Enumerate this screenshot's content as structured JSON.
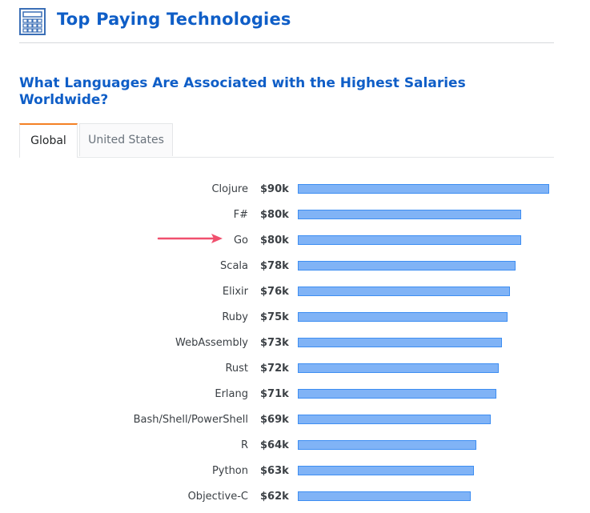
{
  "header": {
    "title": "Top Paying Technologies",
    "icon": "calculator-icon"
  },
  "subtitle": "What Languages Are Associated with the Highest Salaries Worldwide?",
  "tabs": [
    {
      "label": "Global",
      "active": true
    },
    {
      "label": "United States",
      "active": false
    }
  ],
  "colors": {
    "title": "#0f5ec7",
    "bar_fill": "#80b3f6",
    "bar_border": "#3e8ef2",
    "active_tab_accent": "#f48024",
    "arrow": "#f0506e"
  },
  "annotation": {
    "type": "arrow",
    "points_to": "Go",
    "icon": "arrow-right-icon"
  },
  "chart_data": {
    "type": "bar",
    "orientation": "horizontal",
    "categories": [
      "Clojure",
      "F#",
      "Go",
      "Scala",
      "Elixir",
      "Ruby",
      "WebAssembly",
      "Rust",
      "Erlang",
      "Bash/Shell/PowerShell",
      "R",
      "Python",
      "Objective-C"
    ],
    "values": [
      90,
      80,
      80,
      78,
      76,
      75,
      73,
      72,
      71,
      69,
      64,
      63,
      62
    ],
    "value_labels": [
      "$90k",
      "$80k",
      "$80k",
      "$78k",
      "$76k",
      "$75k",
      "$73k",
      "$72k",
      "$71k",
      "$69k",
      "$64k",
      "$63k",
      "$62k"
    ],
    "title": "",
    "xlabel": "",
    "ylabel": "",
    "xlim": [
      0,
      90
    ],
    "grid": false,
    "legend": "none"
  }
}
